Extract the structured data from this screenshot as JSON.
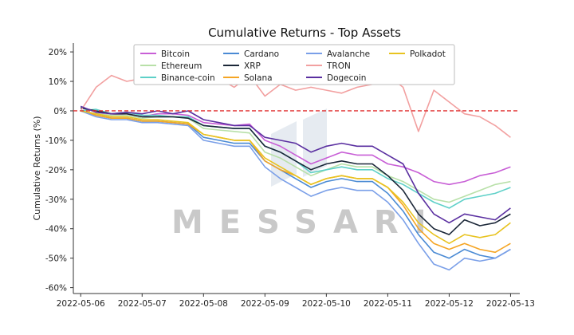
{
  "chart_data": {
    "type": "line",
    "title": "Cumulative Returns - Top Assets",
    "xlabel": "",
    "ylabel": "Cumulative Returns (%)",
    "ylim": [
      -62,
      23
    ],
    "yticks": [
      20,
      10,
      0,
      -10,
      -20,
      -30,
      -40,
      -50,
      -60
    ],
    "ytick_labels": [
      "20%",
      "10%",
      "0%",
      "-10%",
      "-20%",
      "-30%",
      "-40%",
      "-50%",
      "-60%"
    ],
    "xlim": [
      -0.12,
      7.15
    ],
    "xtick_labels": [
      "2022-05-06",
      "2022-05-07",
      "2022-05-08",
      "2022-05-09",
      "2022-05-10",
      "2022-05-11",
      "2022-05-12",
      "2022-05-13"
    ],
    "reference_line": {
      "y": 0,
      "color": "#e03131",
      "style": "dashed"
    },
    "legend_position": "top-center",
    "grid": false,
    "watermark": "MESSARI",
    "x": [
      0,
      0.25,
      0.5,
      0.75,
      1.0,
      1.25,
      1.5,
      1.75,
      2.0,
      2.25,
      2.5,
      2.75,
      3.0,
      3.25,
      3.5,
      3.75,
      4.0,
      4.25,
      4.5,
      4.75,
      5.0,
      5.25,
      5.5,
      5.75,
      6.0,
      6.25,
      6.5,
      6.75,
      7.0
    ],
    "series": [
      {
        "name": "Bitcoin",
        "color": "#c85fd6",
        "values": [
          0,
          -1,
          -1.5,
          -1,
          -2,
          -1,
          -1,
          -1.5,
          -4,
          -4.5,
          -5,
          -4.5,
          -10,
          -12,
          -15,
          -18,
          -16,
          -14,
          -15,
          -15,
          -18,
          -19,
          -21,
          -24,
          -25,
          -24,
          -22,
          -21,
          -19
        ]
      },
      {
        "name": "Ethereum",
        "color": "#b8e0a8",
        "values": [
          0,
          -1,
          -1.5,
          -1.5,
          -2.5,
          -2,
          -2,
          -2.5,
          -6,
          -6.5,
          -7,
          -7.5,
          -14,
          -16,
          -19,
          -22,
          -20,
          -18,
          -19,
          -19,
          -22,
          -24,
          -27,
          -30,
          -31,
          -29,
          -27,
          -25,
          -24
        ]
      },
      {
        "name": "Binance-coin",
        "color": "#5ed0c8",
        "values": [
          0,
          0.5,
          -1,
          -0.5,
          -1.5,
          -1.5,
          -2,
          -2,
          -5,
          -5.5,
          -6,
          -6,
          -12,
          -14,
          -17,
          -21,
          -20,
          -19,
          -20,
          -20,
          -23,
          -25,
          -28,
          -31,
          -33,
          -30,
          -29,
          -28,
          -26
        ]
      },
      {
        "name": "Cardano",
        "color": "#4a8ad4",
        "values": [
          0,
          -1.5,
          -2.5,
          -2.5,
          -3.5,
          -3.5,
          -4,
          -4.5,
          -9,
          -10,
          -11,
          -11,
          -17,
          -20,
          -23,
          -26,
          -24,
          -23,
          -24,
          -24,
          -28,
          -34,
          -42,
          -48,
          -50,
          -47,
          -49,
          -50,
          -47
        ]
      },
      {
        "name": "XRP",
        "color": "#1b2738",
        "values": [
          1,
          0,
          -1,
          -1,
          -2,
          -2,
          -2,
          -2.5,
          -5,
          -5.5,
          -6,
          -6,
          -12,
          -14,
          -17,
          -20,
          -18,
          -17,
          -18,
          -18,
          -22,
          -27,
          -35,
          -40,
          -42,
          -37,
          -39,
          -38,
          -35
        ]
      },
      {
        "name": "Solana",
        "color": "#f5a524",
        "values": [
          0,
          -1.5,
          -2.5,
          -2.5,
          -3.5,
          -3.5,
          -4,
          -4.5,
          -8,
          -9,
          -10,
          -10,
          -17,
          -20,
          -22,
          -25,
          -23,
          -22,
          -23,
          -23,
          -26,
          -32,
          -40,
          -45,
          -47,
          -45,
          -47,
          -48,
          -45
        ]
      },
      {
        "name": "Avalanche",
        "color": "#7a9fe8",
        "values": [
          0,
          -2,
          -3,
          -3,
          -4,
          -4,
          -4.5,
          -5,
          -10,
          -11,
          -12,
          -12,
          -19,
          -23,
          -26,
          -29,
          -27,
          -26,
          -27,
          -27,
          -31,
          -37,
          -45,
          -52,
          -54,
          -50,
          -51,
          -50,
          -47
        ]
      },
      {
        "name": "TRON",
        "color": "#f2a0a0",
        "values": [
          0,
          8,
          12,
          10,
          11,
          9,
          10,
          12,
          14,
          11,
          8,
          12,
          5,
          9,
          7,
          8,
          7,
          6,
          8,
          9,
          12,
          8,
          -7,
          7,
          3,
          -1,
          -2,
          -5,
          -9
        ]
      },
      {
        "name": "Dogecoin",
        "color": "#5a2fa0",
        "values": [
          1.5,
          -0.5,
          -1,
          -0.5,
          -1,
          0,
          -1,
          0,
          -3,
          -4,
          -5,
          -5,
          -9,
          -10,
          -11,
          -14,
          -12,
          -11,
          -12,
          -12,
          -15,
          -18,
          -28,
          -35,
          -38,
          -35,
          -36,
          -37,
          -33
        ]
      },
      {
        "name": "Polkadot",
        "color": "#e8c320",
        "values": [
          0,
          -1,
          -2,
          -2,
          -3,
          -3,
          -3.5,
          -4,
          -8,
          -9,
          -10,
          -10,
          -16,
          -19,
          -22,
          -25,
          -23,
          -22,
          -23,
          -23,
          -26,
          -31,
          -38,
          -42,
          -45,
          -42,
          -43,
          -42,
          -38
        ]
      }
    ]
  }
}
